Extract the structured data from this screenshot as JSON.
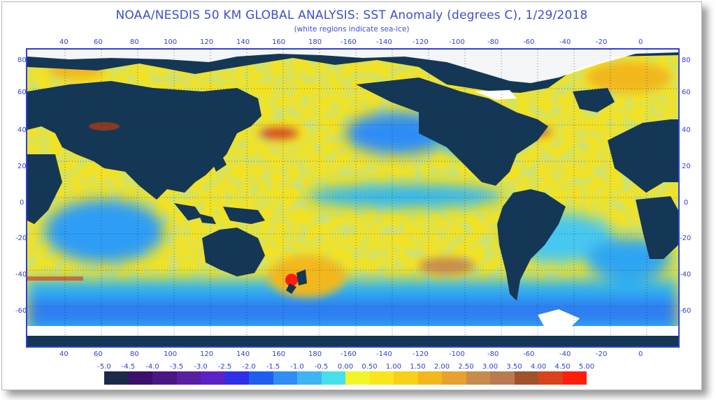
{
  "header": {
    "title": "NOAA/NESDIS 50 KM GLOBAL ANALYSIS: SST Anomaly (degrees C), 1/29/2018",
    "subtitle": "(white regions indicate sea-ice)"
  },
  "axes": {
    "lon_labels": [
      "40",
      "60",
      "80",
      "100",
      "120",
      "140",
      "160",
      "180",
      "-160",
      "-140",
      "-120",
      "-100",
      "-80",
      "-60",
      "-40",
      "-20",
      "0"
    ],
    "lat_labels_left": [
      "80",
      "60",
      "40",
      "20",
      "0",
      "-20",
      "-40",
      "-60"
    ],
    "lat_labels_right": [
      "80",
      "60",
      "40",
      "20",
      "0",
      "-20",
      "-40",
      "-60"
    ]
  },
  "colorbar": {
    "labels": [
      "-5.0",
      "-4.5",
      "-4.0",
      "-3.5",
      "-3.0",
      "-2.5",
      "-2.0",
      "-1.5",
      "-1.0",
      "-0.5",
      "0.00",
      "0.50",
      "1.00",
      "1.50",
      "2.00",
      "2.50",
      "3.00",
      "3.50",
      "4.00",
      "4.50",
      "5.00"
    ],
    "colors": [
      "#1b2a4a",
      "#3b0f6a",
      "#4a1785",
      "#5a1fa0",
      "#5a22c8",
      "#2f2fe8",
      "#1e5ef0",
      "#2f8df5",
      "#3eb4f5",
      "#46e0ea",
      "#f0f528",
      "#f8e51e",
      "#f7d01a",
      "#f2b71a",
      "#e8a02e",
      "#c88b4e",
      "#b97a50",
      "#a0522d",
      "#d8431c",
      "#ff1e0e"
    ]
  },
  "colors": {
    "land": "#153756",
    "ocean_base": "#f2e225",
    "title_text": "#3d4fcc",
    "frame_border": "#2f3fe0"
  }
}
